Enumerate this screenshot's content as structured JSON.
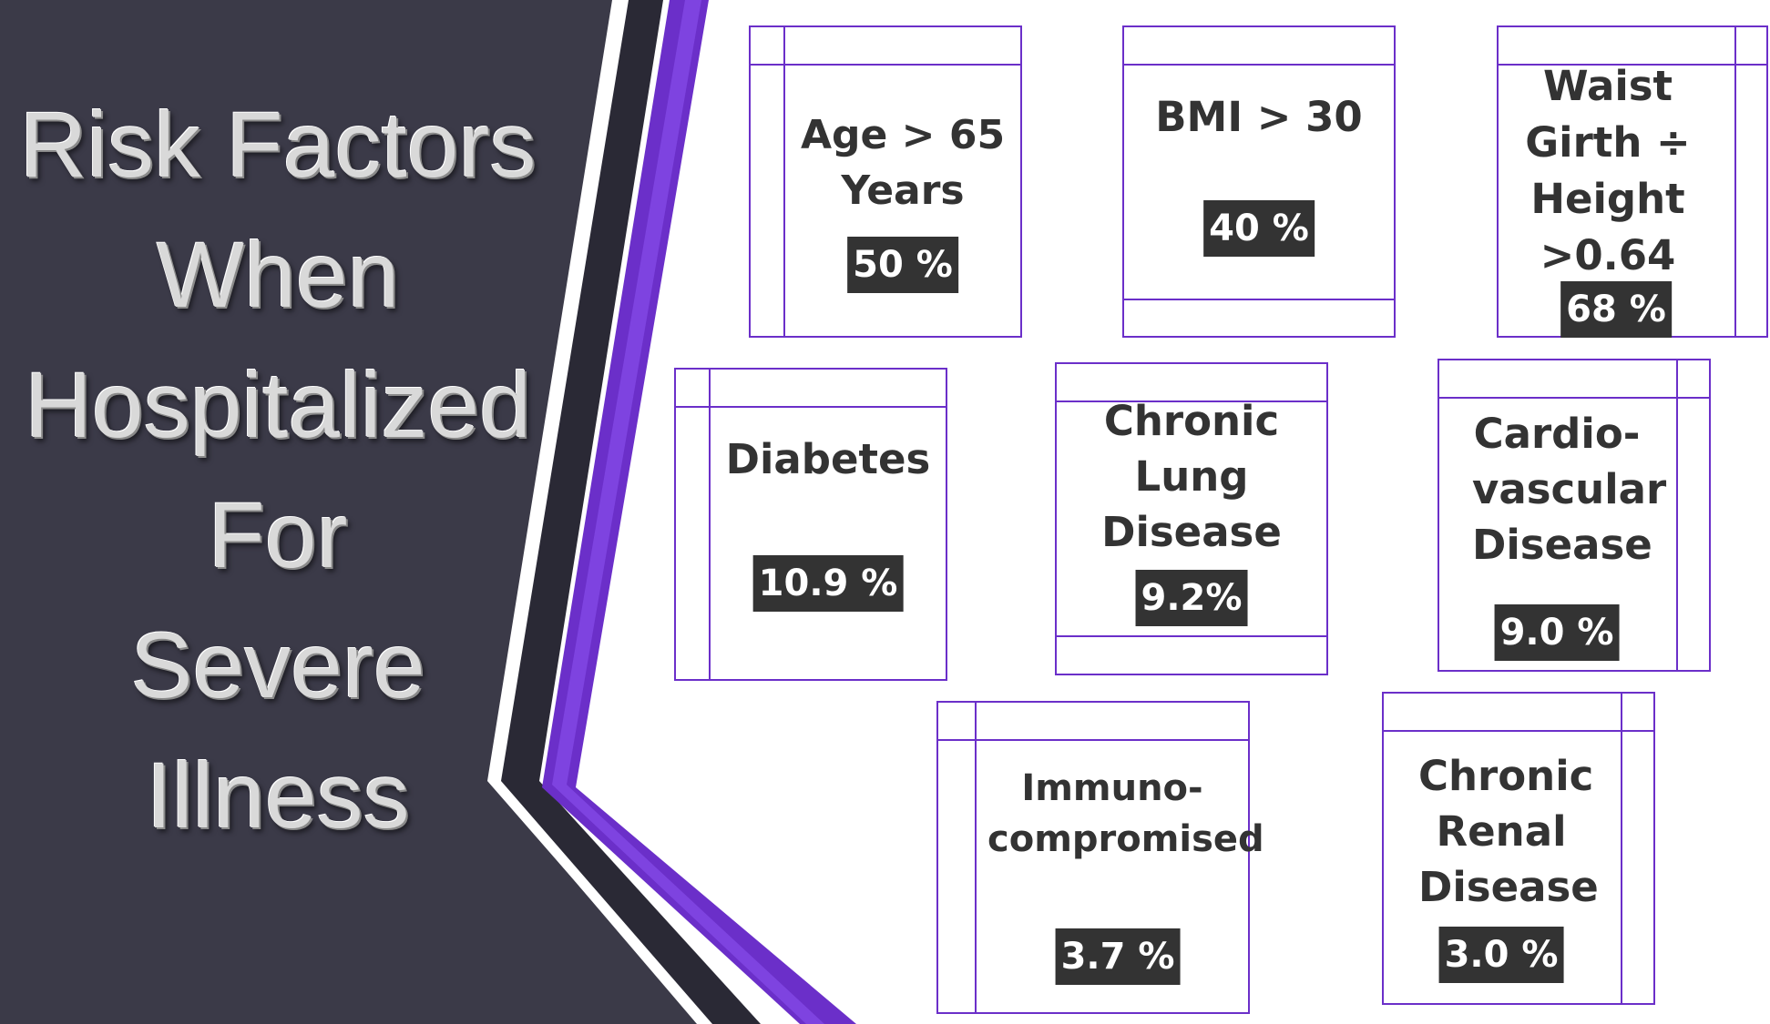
{
  "title_lines": [
    "Risk Factors",
    "When",
    "Hospitalized",
    "For",
    "Severe",
    "Illness"
  ],
  "colors": {
    "panel": "#3b3a48",
    "accent": "#6b2fc9",
    "card_border": "#6b2fc9",
    "value_bg": "#333333",
    "label_text": "#333333"
  },
  "cards": [
    {
      "label": "Age > 65 Years",
      "value": "50 %"
    },
    {
      "label": "BMI > 30",
      "value": "40 %"
    },
    {
      "label": "Waist Girth ÷ Height >0.64",
      "value": "68 %"
    },
    {
      "label": "Diabetes",
      "value": "10.9 %"
    },
    {
      "label": "Chronic Lung Disease",
      "value": "9.2%"
    },
    {
      "label": "Cardio-vascular Disease",
      "value": "9.0 %"
    },
    {
      "label": "Immuno-compromised",
      "value": "3.7 %"
    },
    {
      "label": "Chronic Renal Disease",
      "value": "3.0 %"
    }
  ]
}
